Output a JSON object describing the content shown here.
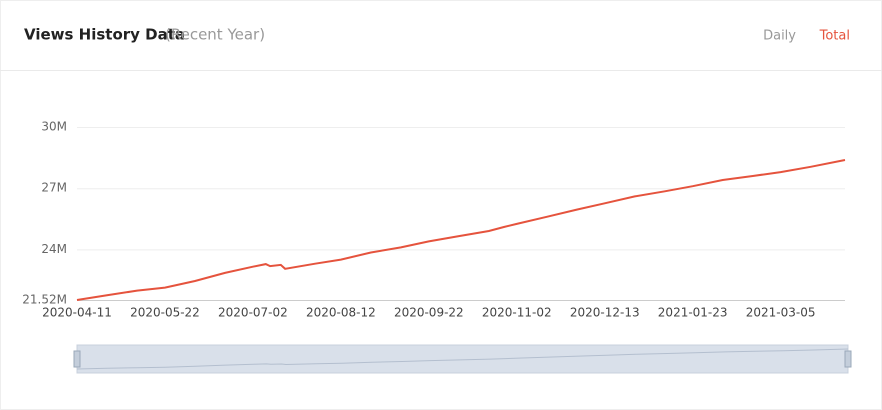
{
  "header": {
    "title": "Views History Data",
    "subtitle": "(Recent Year)",
    "tabs": [
      "Daily",
      "Total"
    ],
    "active_tab": 1
  },
  "chart_data": {
    "type": "line",
    "x": [
      "2020-04-11",
      "2020-04-25",
      "2020-05-09",
      "2020-05-22",
      "2020-06-05",
      "2020-06-19",
      "2020-07-02",
      "2020-07-08",
      "2020-07-10",
      "2020-07-15",
      "2020-07-17",
      "2020-07-31",
      "2020-08-12",
      "2020-08-26",
      "2020-09-09",
      "2020-09-22",
      "2020-10-06",
      "2020-10-20",
      "2020-10-27",
      "2020-11-02",
      "2020-11-16",
      "2020-11-30",
      "2020-12-13",
      "2020-12-27",
      "2021-01-10",
      "2021-01-23",
      "2021-02-06",
      "2021-02-20",
      "2021-03-05",
      "2021-03-19",
      "2021-04-04"
    ],
    "series": [
      {
        "color": "#e5533d",
        "values": [
          21.52,
          21.75,
          21.98,
          22.13,
          22.45,
          22.85,
          23.15,
          23.28,
          23.18,
          23.24,
          23.05,
          23.3,
          23.5,
          23.85,
          24.1,
          24.39,
          24.65,
          24.9,
          25.1,
          25.25,
          25.6,
          25.95,
          26.26,
          26.6,
          26.85,
          27.1,
          27.4,
          27.6,
          27.79,
          28.05,
          28.38
        ]
      }
    ],
    "xlim": [
      "2020-04-11",
      "2021-04-04"
    ],
    "xticks": [
      "2020-04-11",
      "2020-05-22",
      "2020-07-02",
      "2020-08-12",
      "2020-09-22",
      "2020-11-02",
      "2020-12-13",
      "2021-01-23",
      "2021-03-05"
    ],
    "ylim": [
      21.52,
      30
    ],
    "yticks": [
      {
        "value": 21.52,
        "label": "21.52M"
      },
      {
        "value": 24,
        "label": "24M"
      },
      {
        "value": 27,
        "label": "27M"
      },
      {
        "value": 30,
        "label": "30M"
      }
    ],
    "grid": true
  }
}
